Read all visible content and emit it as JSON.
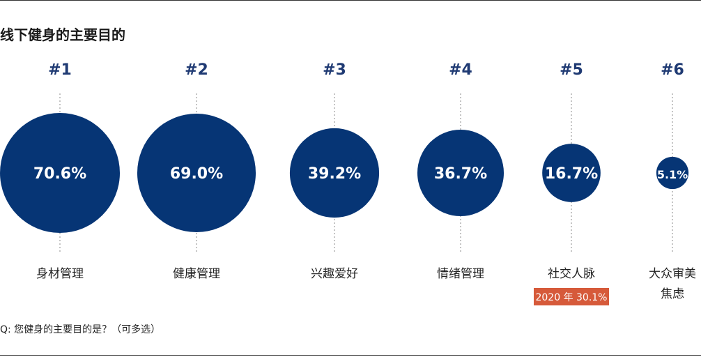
{
  "title": "线下健身的主要目的",
  "footnote": "Q: 您健身的主要目的是？（可多选）",
  "colors": {
    "bubble": "#063575",
    "rank": "#1f3a73",
    "note_bg": "#d65a3a",
    "leader": "#888888"
  },
  "chart_data": {
    "type": "bubble",
    "unit": "%",
    "categories": [
      {
        "rank": "#1",
        "label": [
          "身材管理"
        ],
        "value": 70.6,
        "value_label": "70.6%"
      },
      {
        "rank": "#2",
        "label": [
          "健康管理"
        ],
        "value": 69.0,
        "value_label": "69.0%"
      },
      {
        "rank": "#3",
        "label": [
          "兴趣爱好"
        ],
        "value": 39.2,
        "value_label": "39.2%"
      },
      {
        "rank": "#4",
        "label": [
          "情绪管理"
        ],
        "value": 36.7,
        "value_label": "36.7%"
      },
      {
        "rank": "#5",
        "label": [
          "社交人脉"
        ],
        "value": 16.7,
        "value_label": "16.7%",
        "note": "2020 年 30.1%"
      },
      {
        "rank": "#6",
        "label": [
          "大众审美",
          "焦虑"
        ],
        "value": 5.1,
        "value_label": "5.1%"
      }
    ]
  }
}
